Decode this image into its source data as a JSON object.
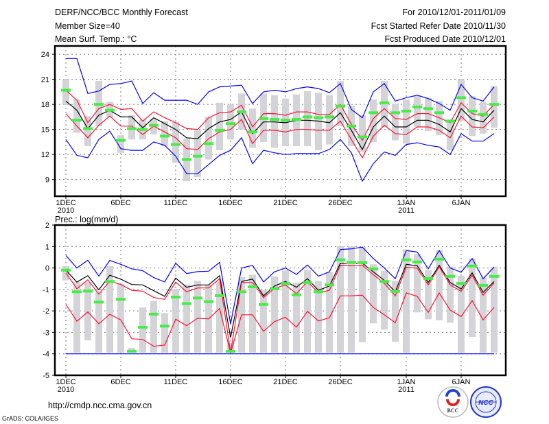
{
  "header": {
    "title": "DERF/NCC/BCC Monthly Forecast",
    "member_size": "Member Size=40",
    "period": "For 2010/12/01-2011/01/09",
    "started": "Fcst Started Refer Date 2010/11/30",
    "produced": "Fcst Produced Date 2010/12/01"
  },
  "footer": {
    "url": "http://cmdp.ncc.cma.gov.cn",
    "grads": "GrADS: COLA/IGES",
    "logo_bcc": "BCC",
    "logo_ncc": "NCC"
  },
  "colors": {
    "extreme": "#0000ff",
    "spread": "#ff1030",
    "mean": "#000000",
    "marker": "#44ee44",
    "range": "#d4d4d8"
  },
  "chart_data": [
    {
      "type": "line",
      "title": "Mean Surf. Temp.: °C",
      "xlabel": "",
      "ylabel": "",
      "x_days": 40,
      "xticks": [
        {
          "day": 1,
          "label": "1DEC",
          "sub": "2010"
        },
        {
          "day": 6,
          "label": "6DEC"
        },
        {
          "day": 11,
          "label": "11DEC"
        },
        {
          "day": 16,
          "label": "16DEC"
        },
        {
          "day": 21,
          "label": "21DEC"
        },
        {
          "day": 26,
          "label": "26DEC"
        },
        {
          "day": 32,
          "label": "1JAN",
          "sub": "2011"
        },
        {
          "day": 37,
          "label": "6JAN"
        }
      ],
      "ylim": [
        7,
        25
      ],
      "yticks": [
        9,
        12,
        15,
        18,
        21,
        24
      ],
      "grid": true,
      "series": [
        {
          "name": "max",
          "color_key": "extreme",
          "values": [
            23.5,
            23.5,
            19.3,
            19.6,
            20.4,
            20.5,
            20.8,
            18.1,
            19.4,
            18.5,
            18.5,
            18.5,
            18.0,
            19.5,
            20.1,
            20.2,
            20.3,
            18.1,
            19.5,
            19.7,
            19.5,
            19.9,
            20.1,
            19.9,
            19.4,
            20.5,
            17.4,
            16.4,
            19.5,
            20.5,
            18.4,
            18.8,
            19.1,
            18.7,
            18.1,
            17.3,
            20.4,
            18.8,
            18.4,
            20.1
          ]
        },
        {
          "name": "upper",
          "color_key": "spread",
          "values": [
            19.7,
            18.5,
            15.8,
            17.5,
            18.0,
            17.4,
            17.5,
            16.0,
            17.1,
            16.4,
            15.8,
            15.1,
            15.0,
            16.4,
            17.0,
            17.1,
            17.9,
            15.3,
            16.9,
            16.9,
            16.7,
            17.1,
            17.1,
            16.8,
            16.8,
            18.0,
            15.6,
            13.7,
            16.3,
            17.5,
            16.3,
            16.2,
            16.9,
            16.9,
            16.4,
            15.8,
            18.2,
            16.9,
            16.6,
            18.0
          ]
        },
        {
          "name": "mean",
          "color_key": "mean",
          "values": [
            18.4,
            17.3,
            15.1,
            16.7,
            17.3,
            16.5,
            16.5,
            15.2,
            16.4,
            15.7,
            15.0,
            14.0,
            13.9,
            15.1,
            15.9,
            16.2,
            17.1,
            14.5,
            15.9,
            15.9,
            15.8,
            16.1,
            16.1,
            16.0,
            15.8,
            17.0,
            14.9,
            12.6,
            15.3,
            16.6,
            15.3,
            15.3,
            16.1,
            16.1,
            15.6,
            14.7,
            17.5,
            16.2,
            15.9,
            17.3
          ]
        },
        {
          "name": "lower",
          "color_key": "spread",
          "values": [
            16.9,
            15.4,
            14.0,
            15.5,
            16.6,
            15.4,
            15.4,
            14.4,
            15.4,
            14.7,
            14.0,
            12.7,
            12.6,
            13.9,
            14.7,
            15.0,
            16.2,
            13.3,
            14.9,
            14.9,
            14.7,
            15.0,
            15.0,
            14.9,
            14.9,
            16.0,
            13.8,
            11.6,
            14.2,
            15.5,
            14.5,
            14.4,
            15.3,
            15.3,
            14.9,
            14.0,
            16.6,
            15.3,
            15.2,
            16.5
          ]
        },
        {
          "name": "min",
          "color_key": "extreme",
          "values": [
            13.8,
            11.9,
            11.6,
            13.8,
            14.8,
            12.7,
            12.5,
            12.5,
            13.5,
            13.1,
            11.8,
            9.7,
            9.7,
            10.8,
            11.9,
            12.5,
            14.0,
            10.9,
            12.5,
            12.2,
            12.0,
            12.1,
            12.1,
            12.1,
            12.6,
            13.8,
            12.2,
            8.8,
            10.9,
            12.3,
            11.9,
            13.2,
            13.4,
            13.1,
            12.9,
            12.0,
            14.5,
            13.6,
            13.6,
            14.5
          ]
        }
      ],
      "markers": [
        19.7,
        16.1,
        15.1,
        18.0,
        17.3,
        13.7,
        15.1,
        15.0,
        15.5,
        14.2,
        13.2,
        11.4,
        11.8,
        13.3,
        14.9,
        15.7,
        17.1,
        14.7,
        16.3,
        16.2,
        16.1,
        16.2,
        16.5,
        16.4,
        16.5,
        17.8,
        15.4,
        14.1,
        17.0,
        18.2,
        17.0,
        17.2,
        17.7,
        17.5,
        17.0,
        16.0,
        18.8,
        17.2,
        16.8,
        18.0
      ],
      "ranges": [
        [
          18.0,
          21.0
        ],
        [
          14.6,
          18.6
        ],
        [
          13.0,
          16.6
        ],
        [
          15.4,
          20.8
        ],
        [
          16.5,
          18.3
        ],
        [
          12.2,
          14.3
        ],
        [
          13.8,
          16.7
        ],
        [
          13.8,
          16.2
        ],
        [
          14.4,
          16.3
        ],
        [
          13.0,
          16.0
        ],
        [
          11.0,
          15.9
        ],
        [
          8.8,
          13.9
        ],
        [
          9.3,
          14.9
        ],
        [
          11.4,
          16.5
        ],
        [
          12.5,
          18.2
        ],
        [
          13.8,
          18.0
        ],
        [
          15.0,
          19.3
        ],
        [
          12.8,
          17.5
        ],
        [
          13.5,
          19.3
        ],
        [
          12.8,
          19.1
        ],
        [
          13.0,
          18.7
        ],
        [
          13.0,
          19.2
        ],
        [
          13.0,
          19.6
        ],
        [
          12.5,
          19.4
        ],
        [
          13.2,
          19.1
        ],
        [
          15.4,
          20.8
        ],
        [
          13.0,
          17.8
        ],
        [
          12.3,
          16.7
        ],
        [
          13.5,
          18.6
        ],
        [
          15.3,
          20.8
        ],
        [
          13.7,
          18.1
        ],
        [
          13.3,
          18.6
        ],
        [
          15.3,
          19.0
        ],
        [
          14.8,
          18.8
        ],
        [
          14.3,
          18.4
        ],
        [
          12.5,
          16.2
        ],
        [
          16.0,
          21.0
        ],
        [
          14.2,
          19.0
        ],
        [
          14.5,
          18.3
        ],
        [
          15.2,
          20.2
        ]
      ]
    },
    {
      "type": "line",
      "title": "Prec.: log(mm/d)",
      "xlabel": "",
      "ylabel": "",
      "x_days": 40,
      "xticks": [
        {
          "day": 1,
          "label": "1DEC",
          "sub": "2010"
        },
        {
          "day": 6,
          "label": "6DEC"
        },
        {
          "day": 11,
          "label": "11DEC"
        },
        {
          "day": 16,
          "label": "16DEC"
        },
        {
          "day": 21,
          "label": "21DEC"
        },
        {
          "day": 26,
          "label": "26DEC"
        },
        {
          "day": 32,
          "label": "1JAN",
          "sub": "2011"
        },
        {
          "day": 37,
          "label": "6JAN"
        }
      ],
      "ylim": [
        -5,
        2
      ],
      "yticks": [
        -5,
        -4,
        -3,
        -2,
        -1,
        0,
        1,
        2
      ],
      "grid": true,
      "series": [
        {
          "name": "max",
          "color_key": "extreme",
          "values": [
            0.58,
            0,
            0.36,
            -0.38,
            0.35,
            0.17,
            -0.04,
            -0.13,
            -0.45,
            -0.65,
            0.22,
            -0.26,
            -0.17,
            -0.15,
            0.26,
            -2.6,
            0,
            0.12,
            -0.65,
            -0.18,
            0,
            -0.3,
            0.14,
            -0.38,
            -0.18,
            0.86,
            0.89,
            0.97,
            0.44,
            0,
            -0.5,
            0.81,
            0.74,
            -0.04,
            0.81,
            0,
            -0.2,
            0.44,
            -0.5,
            0.04
          ]
        },
        {
          "name": "mean",
          "color_key": "mean",
          "values": [
            -0.1,
            -0.66,
            -0.36,
            -1.02,
            -0.34,
            -0.52,
            -0.77,
            -0.79,
            -1.06,
            -1.32,
            -0.47,
            -0.9,
            -0.79,
            -0.79,
            -0.36,
            -3.24,
            -0.63,
            -0.52,
            -1.3,
            -0.84,
            -0.63,
            -0.9,
            -0.5,
            -1.04,
            -0.84,
            0.22,
            0.22,
            0.22,
            -0.18,
            -0.58,
            -1.11,
            0.17,
            0.1,
            -0.68,
            0.12,
            -0.68,
            -0.98,
            -0.23,
            -1.14,
            -0.63
          ]
        },
        {
          "name": "upper",
          "color_key": "spread",
          "values": [
            -0.23,
            -0.97,
            -0.55,
            -1.22,
            -0.61,
            -0.77,
            -1.04,
            -1.08,
            -1.38,
            -1.46,
            -0.66,
            -1.11,
            -0.93,
            -0.93,
            -0.5,
            -3.94,
            -0.68,
            -0.68,
            -1.38,
            -0.95,
            -0.79,
            -1.2,
            -0.63,
            -1.16,
            -1.04,
            0.12,
            0.1,
            0.12,
            -0.31,
            -0.72,
            -1.3,
            0.03,
            -0.01,
            -0.79,
            0.06,
            -0.79,
            -1.09,
            -0.34,
            -1.27,
            -0.7
          ]
        },
        {
          "name": "lower",
          "color_key": "spread",
          "values": [
            -1.7,
            -2.48,
            -2.05,
            -2.6,
            -2.16,
            -2.42,
            -3.3,
            -3.33,
            -3.65,
            -3.59,
            -2.39,
            -2.69,
            -2.34,
            -2.37,
            -1.89,
            -3.97,
            -2.18,
            -2.18,
            -2.95,
            -2.5,
            -2.3,
            -2.76,
            -2.02,
            -2.47,
            -2.32,
            -1.3,
            -1.3,
            -1.27,
            -1.84,
            -2.18,
            -2.55,
            -1.16,
            -1.32,
            -2.07,
            -1.16,
            -1.96,
            -2.26,
            -1.52,
            -2.42,
            -1.84
          ]
        },
        {
          "name": "min",
          "color_key": "extreme",
          "values": [
            -4,
            -4,
            -4,
            -4,
            -4,
            -4,
            -4,
            -4,
            -4,
            -4,
            -4,
            -4,
            -4,
            -4,
            -4,
            -4,
            -4,
            -4,
            -4,
            -4,
            -4,
            -4,
            -4,
            -4,
            -4,
            -4,
            -4,
            -4,
            -4,
            -4,
            -4,
            -4,
            -4,
            -4,
            -4,
            -4,
            -4,
            -4,
            -4,
            -4
          ]
        }
      ],
      "markers": [
        -0.1,
        -1.11,
        -1.08,
        -1.59,
        -0.63,
        -1.46,
        -3.88,
        -2.76,
        -2.15,
        -2.71,
        -1.36,
        -1.66,
        -1.4,
        -1.57,
        -1.29,
        -3.88,
        -1.11,
        -0.88,
        -1.7,
        -0.97,
        -0.72,
        -1.25,
        -0.68,
        -1.11,
        -0.79,
        0.38,
        0.26,
        0.25,
        -0.04,
        -0.63,
        -1.09,
        0.38,
        0.28,
        -0.49,
        0.41,
        -0.39,
        -0.72,
        0.09,
        -0.81,
        -0.39
      ],
      "ranges": [
        [
          -0.58,
          0.09
        ],
        [
          -3.94,
          -0.66
        ],
        [
          -3.37,
          -0.66
        ],
        [
          -3.94,
          -1.1
        ],
        [
          -3.94,
          0.09
        ],
        [
          -3.94,
          -0.74
        ],
        [
          -3.94,
          -3.72
        ],
        [
          -3.94,
          -1.84
        ],
        [
          -3.94,
          -1.54
        ],
        [
          -3.94,
          -2.1
        ],
        [
          -3.94,
          -0.98
        ],
        [
          -3.94,
          -0.77
        ],
        [
          -3.94,
          -0.6
        ],
        [
          -3.94,
          -0.79
        ],
        [
          -3.94,
          -0.63
        ],
        [
          -3.94,
          -3.5
        ],
        [
          -3.94,
          -0.42
        ],
        [
          -3.94,
          -0.31
        ],
        [
          -3.94,
          -1.02
        ],
        [
          -3.94,
          -0.39
        ],
        [
          -3.94,
          -0.1
        ],
        [
          -3.94,
          -0.68
        ],
        [
          -3.94,
          -0.1
        ],
        [
          -3.94,
          -0.6
        ],
        [
          -3.94,
          -0.18
        ],
        [
          -3.94,
          1.02
        ],
        [
          -3.94,
          1.02
        ],
        [
          -3.46,
          0.97
        ],
        [
          -2.58,
          0.17
        ],
        [
          -2.87,
          -0.13
        ],
        [
          -3.44,
          -0.6
        ],
        [
          -3.94,
          0.86
        ],
        [
          -2.07,
          0.65
        ],
        [
          -2.39,
          -0.1
        ],
        [
          -2.44,
          0.83
        ],
        [
          -2.55,
          0.06
        ],
        [
          -3.94,
          -0.36
        ],
        [
          -3.21,
          0.44
        ],
        [
          -3.94,
          -0.44
        ],
        [
          -3.94,
          0.06
        ]
      ]
    }
  ]
}
